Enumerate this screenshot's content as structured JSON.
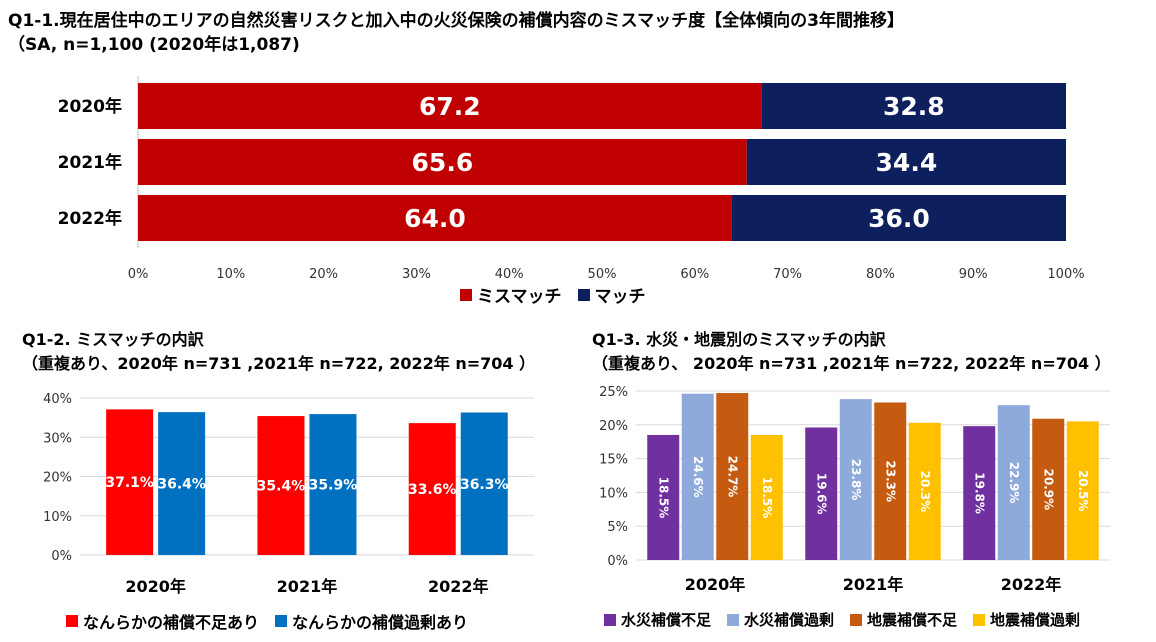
{
  "chart_data": [
    {
      "type": "bar",
      "orientation": "horizontal",
      "stacked": true,
      "title": "Q1-1.現在居住中のエリアの自然災害リスクと加入中の火災保険の補償内容のミスマッチ度【全体傾向の3年間推移】",
      "subtitle": "（SA, n=1,100 (2020年は1,087)",
      "categories": [
        "2020年",
        "2021年",
        "2022年"
      ],
      "series": [
        {
          "name": "ミスマッチ",
          "values": [
            67.2,
            65.6,
            64.0
          ],
          "color": "#c00000"
        },
        {
          "name": "マッチ",
          "values": [
            32.8,
            34.4,
            36.0
          ],
          "color": "#0d1f5c"
        }
      ],
      "value_labels": [
        [
          "67.2",
          "65.6",
          "64.0"
        ],
        [
          "32.8",
          "34.4",
          "36.0"
        ]
      ],
      "xlim": [
        0,
        100
      ],
      "xticks": [
        "0%",
        "10%",
        "20%",
        "30%",
        "40%",
        "50%",
        "60%",
        "70%",
        "80%",
        "90%",
        "100%"
      ],
      "legend": "bottom"
    },
    {
      "type": "bar",
      "title": "Q1-2. ミスマッチの内訳",
      "subtitle": "（重複あり、2020年 n=731 ,2021年 n=722, 2022年 n=704 ）",
      "categories": [
        "2020年",
        "2021年",
        "2022年"
      ],
      "series": [
        {
          "name": "なんらかの補償不足あり",
          "values": [
            37.1,
            35.4,
            33.6
          ],
          "color": "#ff0000"
        },
        {
          "name": "なんらかの補償過剰あり",
          "values": [
            36.4,
            35.9,
            36.3
          ],
          "color": "#0070c0"
        }
      ],
      "value_labels": [
        [
          "37.1%",
          "35.4%",
          "33.6%"
        ],
        [
          "36.4%",
          "35.9%",
          "36.3%"
        ]
      ],
      "ylim": [
        0,
        40
      ],
      "yticks": [
        "0%",
        "10%",
        "20%",
        "30%",
        "40%"
      ],
      "legend": "bottom"
    },
    {
      "type": "bar",
      "title": "Q1-3. 水災・地震別のミスマッチの内訳",
      "subtitle": "（重複あり、 2020年 n=731 ,2021年 n=722, 2022年 n=704 ）",
      "categories": [
        "2020年",
        "2021年",
        "2022年"
      ],
      "series": [
        {
          "name": "水災補償不足",
          "values": [
            18.5,
            19.6,
            19.8
          ],
          "color": "#7030a0"
        },
        {
          "name": "水災補償過剰",
          "values": [
            24.6,
            23.8,
            22.9
          ],
          "color": "#8eaadb"
        },
        {
          "name": "地震補償不足",
          "values": [
            24.7,
            23.3,
            20.9
          ],
          "color": "#c55a11"
        },
        {
          "name": "地震補償過剰",
          "values": [
            18.5,
            20.3,
            20.5
          ],
          "color": "#ffc000"
        }
      ],
      "value_labels": [
        [
          "18.5%",
          "19.6%",
          "19.8%"
        ],
        [
          "24.6%",
          "23.8%",
          "22.9%"
        ],
        [
          "24.7%",
          "23.3%",
          "20.9%"
        ],
        [
          "18.5%",
          "20.3%",
          "20.5%"
        ]
      ],
      "ylim": [
        0,
        25
      ],
      "yticks": [
        "0%",
        "5%",
        "10%",
        "15%",
        "20%",
        "25%"
      ],
      "legend": "bottom"
    }
  ]
}
